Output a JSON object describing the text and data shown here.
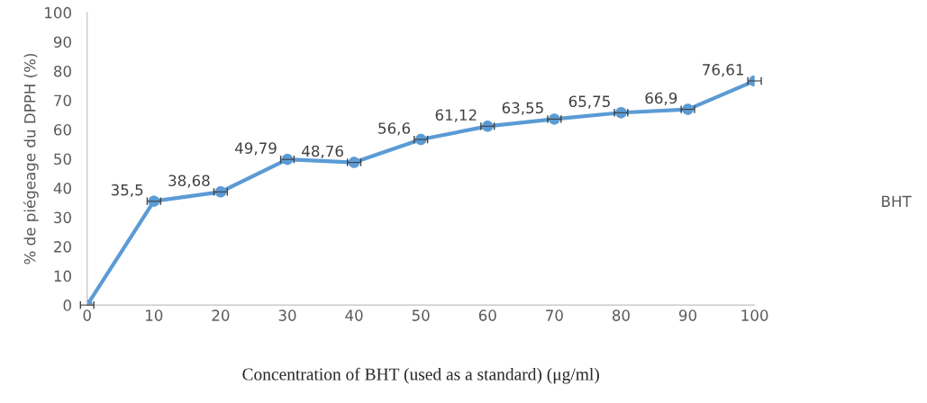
{
  "chart_data": {
    "type": "line",
    "xlabel": "Concentration of BHT (used as a standard) (μg/ml)",
    "ylabel": "% de piégeage du DPPH (%)",
    "x": [
      0,
      10,
      20,
      30,
      40,
      50,
      60,
      70,
      80,
      90,
      100
    ],
    "series": [
      {
        "name": "BHT",
        "color": "#5b9bd5",
        "values": [
          0,
          35.5,
          38.68,
          49.79,
          48.76,
          56.6,
          61.12,
          63.55,
          65.75,
          66.9,
          76.61
        ],
        "value_labels": [
          null,
          "35,5",
          "38,68",
          "49,79",
          "48,76",
          "56,6",
          "61,12",
          "63,55",
          "65,75",
          "66,9",
          "76,61"
        ],
        "xerrors": [
          1,
          1,
          1,
          1,
          1,
          1,
          1,
          1,
          1,
          1,
          1
        ]
      }
    ],
    "xlim": [
      0,
      100
    ],
    "xticks": [
      0,
      10,
      20,
      30,
      40,
      50,
      60,
      70,
      80,
      90,
      100
    ],
    "ylim": [
      0,
      100
    ],
    "yticks": [
      0,
      10,
      20,
      30,
      40,
      50,
      60,
      70,
      80,
      90,
      100
    ],
    "marker": "circle",
    "line_style": "solid",
    "grid": false,
    "legend": "right"
  }
}
